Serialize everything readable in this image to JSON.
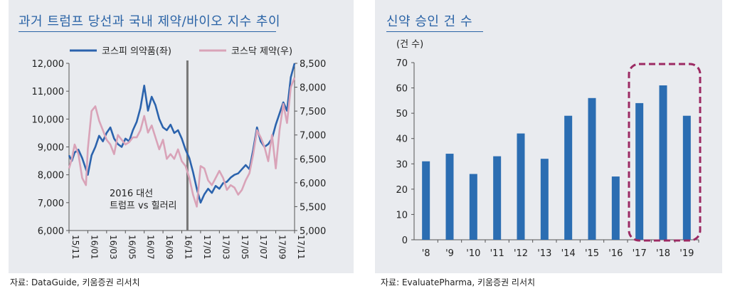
{
  "left_panel": {
    "title": "과거 트럼프 당선과 국내 제약/바이오 지수 추이",
    "source": "자료: DataGuide, 키움증권 리서치",
    "annotation_line1": "2016 대선",
    "annotation_line2": "트럼프 vs 힐러리"
  },
  "right_panel": {
    "title": "신약 승인 건 수",
    "source": "자료: EvaluatePharma, 키움증권 리서치",
    "unit_label": "(건 수)"
  },
  "colors": {
    "kospi": "#2b63ad",
    "kosdaq": "#d9a3b8",
    "bar": "#2b6db2",
    "highlight": "#9c2a63",
    "title": "#2a63a6"
  },
  "chart_data": [
    {
      "type": "line",
      "title": "과거 트럼프 당선과 국내 제약/바이오 지수 추이",
      "x_ticks": [
        "15/11",
        "16/01",
        "16/03",
        "16/05",
        "16/07",
        "16/09",
        "16/11",
        "17/01",
        "17/03",
        "17/05",
        "17/07",
        "17/09",
        "17/11"
      ],
      "series": [
        {
          "name": "코스피 의약품(좌)",
          "axis": "left",
          "x": [
            0,
            0.15,
            0.3,
            0.5,
            0.7,
            0.9,
            1.0,
            1.2,
            1.4,
            1.6,
            1.8,
            2.0,
            2.2,
            2.4,
            2.6,
            2.8,
            3.0,
            3.2,
            3.4,
            3.6,
            3.8,
            4.0,
            4.2,
            4.4,
            4.6,
            4.8,
            5.0,
            5.2,
            5.4,
            5.6,
            5.8,
            6.0,
            6.2,
            6.4,
            6.6,
            6.8,
            7.0,
            7.2,
            7.4,
            7.6,
            7.8,
            8.0,
            8.2,
            8.4,
            8.6,
            8.8,
            9.0,
            9.2,
            9.4,
            9.6,
            9.8,
            10.0,
            10.2,
            10.4,
            10.6,
            10.8,
            11.0,
            11.2,
            11.4,
            11.6,
            11.8,
            12.0
          ],
          "values": [
            8700,
            8500,
            8800,
            8900,
            8600,
            8200,
            8000,
            8700,
            9000,
            9400,
            9200,
            9500,
            9700,
            9300,
            9100,
            9000,
            9300,
            9200,
            9600,
            9900,
            10400,
            11200,
            10300,
            10800,
            10500,
            10000,
            9700,
            9600,
            9800,
            9500,
            9600,
            9300,
            8900,
            8600,
            8100,
            7500,
            7000,
            7300,
            7500,
            7350,
            7600,
            7500,
            7700,
            7750,
            7900,
            8000,
            8050,
            8200,
            8350,
            8200,
            8900,
            9700,
            9200,
            9000,
            9100,
            9300,
            9800,
            10200,
            10600,
            10300,
            11500,
            12000
          ]
        },
        {
          "name": "코스닥 제약(우)",
          "axis": "right",
          "x": [
            0,
            0.15,
            0.3,
            0.5,
            0.7,
            0.9,
            1.0,
            1.2,
            1.4,
            1.6,
            1.8,
            2.0,
            2.2,
            2.4,
            2.6,
            2.8,
            3.0,
            3.2,
            3.4,
            3.6,
            3.8,
            4.0,
            4.2,
            4.4,
            4.6,
            4.8,
            5.0,
            5.2,
            5.4,
            5.6,
            5.8,
            6.0,
            6.2,
            6.4,
            6.6,
            6.8,
            7.0,
            7.2,
            7.4,
            7.6,
            7.8,
            8.0,
            8.2,
            8.4,
            8.6,
            8.8,
            9.0,
            9.2,
            9.4,
            9.6,
            9.8,
            10.0,
            10.2,
            10.4,
            10.6,
            10.8,
            11.0,
            11.2,
            11.4,
            11.6,
            11.8,
            12.0
          ],
          "values": [
            6300,
            6500,
            6800,
            6600,
            6100,
            5950,
            6700,
            7500,
            7600,
            7300,
            7100,
            6900,
            6800,
            6600,
            7000,
            6900,
            6800,
            6850,
            6950,
            6950,
            7100,
            7400,
            7050,
            7200,
            6950,
            6700,
            6900,
            6500,
            6600,
            6500,
            6700,
            6450,
            6350,
            6100,
            5750,
            5500,
            6350,
            6300,
            6050,
            5950,
            6100,
            6250,
            6100,
            5850,
            5950,
            5900,
            5750,
            5850,
            6050,
            6200,
            6600,
            7100,
            6950,
            6750,
            6450,
            7000,
            6300,
            7100,
            7650,
            7250,
            8000,
            8200
          ]
        }
      ],
      "y_left": {
        "lim": [
          6000,
          12000
        ],
        "ticks": [
          "6,000",
          "7,000",
          "8,000",
          "9,000",
          "10,000",
          "11,000",
          "12,000"
        ]
      },
      "y_right": {
        "lim": [
          5000,
          8500
        ],
        "ticks": [
          "5,000",
          "5,500",
          "6,000",
          "6,500",
          "7,000",
          "7,500",
          "8,000",
          "8,500"
        ]
      },
      "event_marker_x": 6.3,
      "legend": "top"
    },
    {
      "type": "bar",
      "title": "신약 승인 건 수",
      "ylabel": "(건 수)",
      "categories": [
        "'8",
        "'9",
        "'10",
        "'11",
        "'12",
        "'13",
        "'14",
        "'15",
        "'16",
        "'17",
        "'18",
        "'19"
      ],
      "values": [
        31,
        34,
        26,
        33,
        42,
        32,
        49,
        56,
        25,
        54,
        61,
        49
      ],
      "ylim": [
        0,
        70
      ],
      "y_ticks": [
        "0",
        "10",
        "20",
        "30",
        "40",
        "50",
        "60",
        "70"
      ],
      "highlight_categories": [
        "'17",
        "'18",
        "'19"
      ]
    }
  ]
}
